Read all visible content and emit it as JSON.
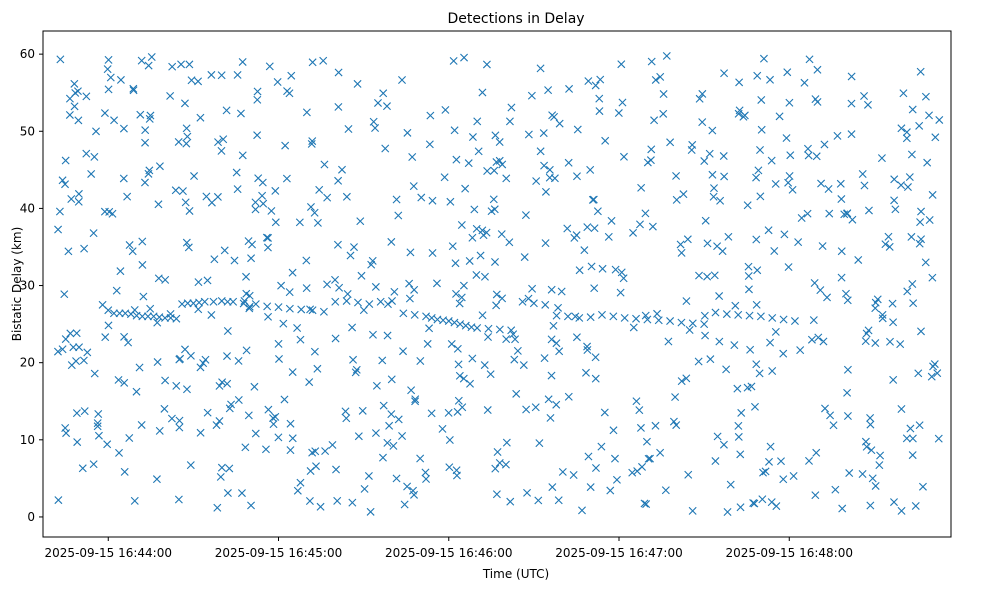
{
  "chart_data": {
    "type": "scatter",
    "title": "Detections in Delay",
    "xlabel": "Time (UTC)",
    "ylabel": "Bistatic Delay (km)",
    "x_type": "time",
    "xlim": [
      "2025-09-15 16:43:37",
      "2025-09-15 16:48:57"
    ],
    "ylim": [
      -2.6,
      63
    ],
    "x_ticks": [
      "2025-09-15 16:44:00",
      "2025-09-15 16:45:00",
      "2025-09-15 16:46:00",
      "2025-09-15 16:47:00",
      "2025-09-15 16:48:00"
    ],
    "y_ticks": [
      0,
      10,
      20,
      30,
      40,
      50,
      60
    ],
    "grid": false,
    "marker": "x",
    "color": "#1f77b4",
    "series": [
      {
        "time_start": "2025-09-15 16:43:40",
        "time_step_s": 2,
        "note_values": "bistatic delay in km, one detection per value, track points plus clutter",
        "track": [
          [
            "16:43:58",
            27.5
          ],
          [
            "16:44:00",
            26.8
          ],
          [
            "16:44:02",
            26.4
          ],
          [
            "16:44:04",
            26.4
          ],
          [
            "16:44:06",
            26.4
          ],
          [
            "16:44:08",
            26.3
          ],
          [
            "16:44:10",
            26.1
          ],
          [
            "16:44:12",
            26.0
          ],
          [
            "16:44:14",
            26.0
          ],
          [
            "16:44:16",
            26.0
          ],
          [
            "16:44:18",
            25.9
          ],
          [
            "16:44:20",
            25.8
          ],
          [
            "16:44:22",
            25.8
          ],
          [
            "16:44:24",
            25.7
          ],
          [
            "16:44:26",
            27.6
          ],
          [
            "16:44:28",
            27.7
          ],
          [
            "16:44:30",
            27.7
          ],
          [
            "16:44:32",
            27.8
          ],
          [
            "16:44:34",
            27.9
          ],
          [
            "16:44:40",
            28.0
          ],
          [
            "16:44:44",
            27.9
          ],
          [
            "16:44:48",
            28.0
          ],
          [
            "16:44:52",
            27.6
          ],
          [
            "16:44:56",
            27.3
          ],
          [
            "16:45:00",
            27.2
          ],
          [
            "16:45:04",
            27.0
          ],
          [
            "16:45:08",
            26.9
          ],
          [
            "16:45:12",
            26.8
          ],
          [
            "16:45:16",
            26.6
          ],
          [
            "16:45:20",
            27.9
          ],
          [
            "16:45:24",
            28.0
          ],
          [
            "16:45:28",
            27.8
          ],
          [
            "16:45:32",
            27.6
          ],
          [
            "16:45:36",
            27.9
          ],
          [
            "16:45:40",
            28.0
          ],
          [
            "16:45:44",
            26.4
          ],
          [
            "16:45:48",
            26.2
          ],
          [
            "16:45:52",
            26.0
          ],
          [
            "16:45:54",
            25.8
          ],
          [
            "16:45:56",
            25.6
          ],
          [
            "16:45:58",
            25.5
          ],
          [
            "16:46:00",
            25.4
          ],
          [
            "16:46:02",
            25.2
          ],
          [
            "16:46:04",
            25.0
          ],
          [
            "16:46:06",
            24.8
          ],
          [
            "16:46:08",
            24.6
          ],
          [
            "16:46:10",
            24.5
          ],
          [
            "16:46:14",
            24.4
          ],
          [
            "16:46:18",
            24.3
          ],
          [
            "16:46:22",
            24.2
          ],
          [
            "16:46:26",
            27.9
          ],
          [
            "16:46:30",
            27.7
          ],
          [
            "16:46:34",
            27.5
          ],
          [
            "16:46:38",
            26.1
          ],
          [
            "16:46:42",
            26.0
          ],
          [
            "16:46:46",
            25.8
          ],
          [
            "16:46:50",
            25.9
          ],
          [
            "16:46:54",
            26.2
          ],
          [
            "16:46:58",
            26.0
          ],
          [
            "16:47:02",
            25.8
          ],
          [
            "16:47:06",
            25.7
          ],
          [
            "16:47:10",
            25.6
          ],
          [
            "16:47:14",
            25.5
          ],
          [
            "16:47:18",
            25.4
          ],
          [
            "16:47:22",
            25.2
          ],
          [
            "16:47:26",
            25.1
          ],
          [
            "16:47:30",
            25.0
          ],
          [
            "16:47:34",
            26.5
          ],
          [
            "16:47:38",
            26.3
          ],
          [
            "16:47:42",
            26.2
          ],
          [
            "16:47:46",
            26.1
          ],
          [
            "16:47:50",
            26.0
          ],
          [
            "16:47:54",
            25.8
          ],
          [
            "16:47:58",
            25.6
          ],
          [
            "16:48:02",
            25.4
          ]
        ]
      }
    ]
  }
}
